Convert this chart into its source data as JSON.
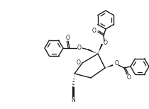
{
  "bg_color": "#ffffff",
  "line_color": "#1a1a1a",
  "lw": 1.0,
  "figsize": [
    2.1,
    1.54
  ],
  "dpi": 100,
  "xlim": [
    0,
    210
  ],
  "ylim": [
    0,
    154
  ]
}
